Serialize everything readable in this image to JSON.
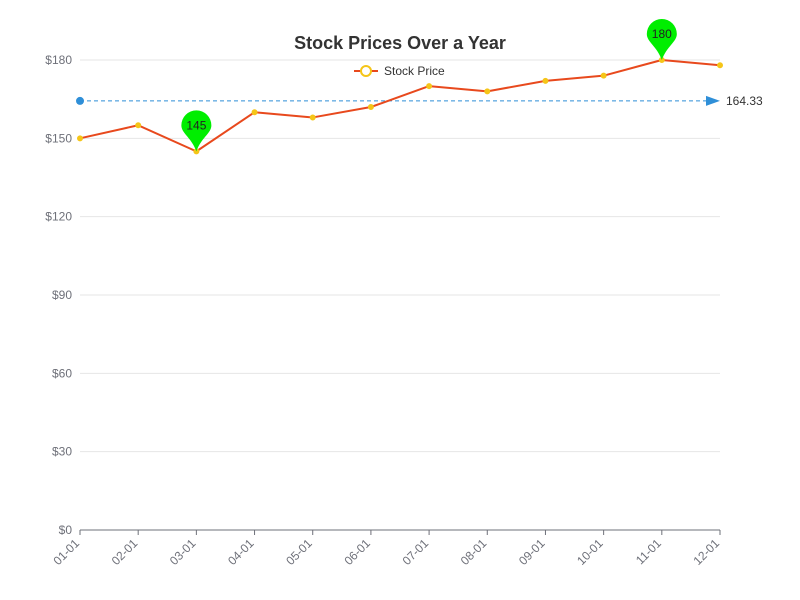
{
  "chart_data": {
    "type": "line",
    "title": "Stock Prices Over a Year",
    "legend": {
      "entries": [
        "Stock Price"
      ],
      "position": "top-center"
    },
    "categories": [
      "01-01",
      "02-01",
      "03-01",
      "04-01",
      "05-01",
      "06-01",
      "07-01",
      "08-01",
      "09-01",
      "10-01",
      "11-01",
      "12-01"
    ],
    "series": [
      {
        "name": "Stock Price",
        "values": [
          150,
          155,
          145,
          160,
          158,
          162,
          170,
          168,
          172,
          174,
          180,
          178
        ]
      }
    ],
    "y_ticks": [
      "$0",
      "$30",
      "$60",
      "$90",
      "$120",
      "$150",
      "$180"
    ],
    "ylim": [
      0,
      180
    ],
    "grid": true,
    "mark_points": [
      {
        "label": "145",
        "category": "03-01",
        "value": 145
      },
      {
        "label": "180",
        "category": "11-01",
        "value": 180
      }
    ],
    "mark_line": {
      "label": "164.33",
      "value": 164.33
    },
    "colors": {
      "line": "#e8491d",
      "marker": "#f5c518",
      "pin": "#00ee00",
      "avg_line": "#2f8fd8",
      "grid": "#e6e6e6",
      "axis": "#6e7079"
    }
  }
}
